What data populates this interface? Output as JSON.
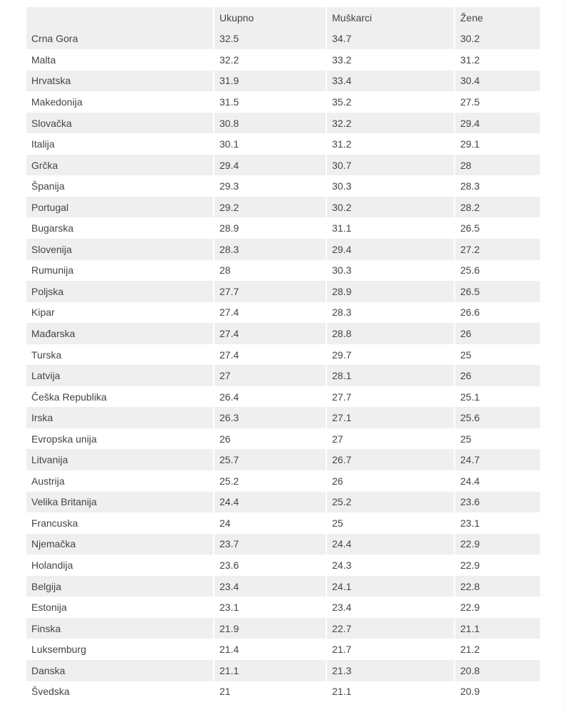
{
  "headers": [
    "",
    "Ukupno",
    "Muškarci",
    "Žene"
  ],
  "rows": [
    [
      "Crna Gora",
      "32.5",
      "34.7",
      "30.2"
    ],
    [
      "Malta",
      "32.2",
      "33.2",
      "31.2"
    ],
    [
      "Hrvatska",
      "31.9",
      "33.4",
      "30.4"
    ],
    [
      "Makedonija",
      "31.5",
      "35.2",
      "27.5"
    ],
    [
      "Slovačka",
      "30.8",
      "32.2",
      "29.4"
    ],
    [
      "Italija",
      "30.1",
      "31.2",
      "29.1"
    ],
    [
      "Grčka",
      "29.4",
      "30.7",
      "28"
    ],
    [
      "Španija",
      "29.3",
      "30.3",
      "28.3"
    ],
    [
      "Portugal",
      "29.2",
      "30.2",
      "28.2"
    ],
    [
      "Bugarska",
      "28.9",
      "31.1",
      "26.5"
    ],
    [
      "Slovenija",
      "28.3",
      "29.4",
      "27.2"
    ],
    [
      "Rumunija",
      "28",
      "30.3",
      "25.6"
    ],
    [
      "Poljska",
      "27.7",
      "28.9",
      "26.5"
    ],
    [
      "Kipar",
      "27.4",
      "28.3",
      "26.6"
    ],
    [
      "Mađarska",
      "27.4",
      "28.8",
      "26"
    ],
    [
      "Turska",
      "27.4",
      "29.7",
      "25"
    ],
    [
      "Latvija",
      "27",
      "28.1",
      "26"
    ],
    [
      "Češka Republika",
      "26.4",
      "27.7",
      "25.1"
    ],
    [
      "Irska",
      "26.3",
      "27.1",
      "25.6"
    ],
    [
      "Evropska unija",
      "26",
      "27",
      "25"
    ],
    [
      "Litvanija",
      "25.7",
      "26.7",
      "24.7"
    ],
    [
      "Austrija",
      "25.2",
      "26",
      "24.4"
    ],
    [
      "Velika Britanija",
      "24.4",
      "25.2",
      "23.6"
    ],
    [
      "Francuska",
      "24",
      "25",
      "23.1"
    ],
    [
      "Njemačka",
      "23.7",
      "24.4",
      "22.9"
    ],
    [
      "Holandija",
      "23.6",
      "24.3",
      "22.9"
    ],
    [
      "Belgija",
      "23.4",
      "24.1",
      "22.8"
    ],
    [
      "Estonija",
      "23.1",
      "23.4",
      "22.9"
    ],
    [
      "Finska",
      "21.9",
      "22.7",
      "21.1"
    ],
    [
      "Luksemburg",
      "21.4",
      "21.7",
      "21.2"
    ],
    [
      "Danska",
      "21.1",
      "21.3",
      "20.8"
    ],
    [
      "Švedska",
      "21",
      "21.1",
      "20.9"
    ]
  ]
}
